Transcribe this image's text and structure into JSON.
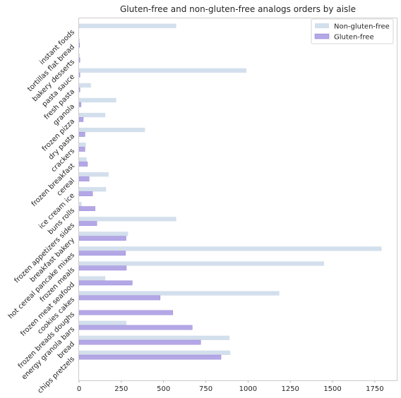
{
  "chart_data": {
    "type": "bar",
    "orientation": "horizontal",
    "title": "Gluten-free and non-gluten-free analogs orders by aisle",
    "xlabel": "",
    "ylabel": "",
    "xlim": [
      0,
      1880
    ],
    "xticks": [
      0,
      250,
      500,
      750,
      1000,
      1250,
      1500,
      1750
    ],
    "grid": false,
    "legend_position": "top-right",
    "categories": [
      "chips pretzels",
      "bread",
      "energy granola bars",
      "frozen breads doughs",
      "cookies cakes",
      "frozen meat seafood",
      "frozen meals",
      "hot cereal pancake mixes",
      "breakfast bakery",
      "frozen appetizers sides",
      "buns rolls",
      "ice cream ice",
      "cereal",
      "frozen breakfast",
      "crackers",
      "dry pasta",
      "frozen pizza",
      "granola",
      "fresh pasta",
      "pasta sauce",
      "bakery desserts",
      "tortillas flat bread",
      "instant foods"
    ],
    "series": [
      {
        "name": "Non-gluten-free",
        "color": "#d3dfec",
        "values": [
          895,
          890,
          280,
          0,
          1185,
          155,
          1450,
          1790,
          290,
          575,
          15,
          160,
          175,
          45,
          40,
          390,
          155,
          220,
          70,
          990,
          5,
          5,
          575
        ]
      },
      {
        "name": "Gluten-free",
        "color": "#b4a7e6",
        "values": [
          840,
          720,
          670,
          555,
          480,
          315,
          280,
          275,
          278,
          105,
          95,
          80,
          60,
          50,
          35,
          35,
          25,
          12,
          5,
          5,
          5,
          3,
          0
        ]
      }
    ]
  }
}
